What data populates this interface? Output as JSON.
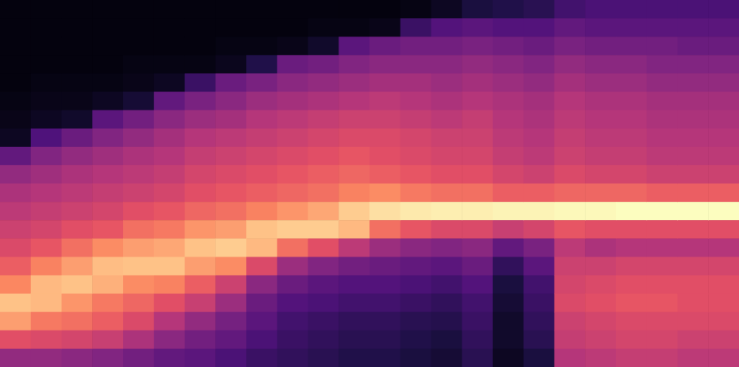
{
  "chart_data": {
    "type": "heatmap",
    "tick_labels": false,
    "xlim": [
      0,
      24
    ],
    "ylim": [
      0,
      20
    ],
    "color_range": [
      0,
      100
    ],
    "cells": [
      [
        2,
        2,
        2,
        2,
        2,
        3,
        4,
        6,
        30,
        42,
        48,
        52,
        56,
        60,
        66,
        75,
        88,
        80,
        62,
        42
      ],
      [
        2,
        2,
        2,
        2,
        3,
        4,
        6,
        25,
        38,
        45,
        50,
        54,
        58,
        64,
        74,
        86,
        86,
        72,
        60,
        42
      ],
      [
        2,
        2,
        2,
        2,
        3,
        4,
        8,
        32,
        42,
        48,
        52,
        56,
        62,
        70,
        80,
        88,
        78,
        70,
        58,
        40
      ],
      [
        2,
        2,
        2,
        2,
        3,
        6,
        28,
        38,
        45,
        50,
        54,
        58,
        64,
        76,
        87,
        84,
        72,
        66,
        55,
        38
      ],
      [
        2,
        2,
        2,
        3,
        4,
        10,
        34,
        42,
        48,
        52,
        56,
        62,
        70,
        80,
        88,
        76,
        68,
        60,
        48,
        34
      ],
      [
        2,
        2,
        2,
        3,
        6,
        30,
        40,
        46,
        50,
        54,
        58,
        64,
        72,
        82,
        88,
        74,
        62,
        50,
        40,
        30
      ],
      [
        2,
        2,
        2,
        3,
        20,
        36,
        44,
        50,
        54,
        58,
        62,
        68,
        78,
        88,
        80,
        66,
        55,
        42,
        34,
        28
      ],
      [
        2,
        2,
        3,
        5,
        32,
        40,
        46,
        52,
        56,
        60,
        64,
        70,
        80,
        90,
        76,
        56,
        44,
        35,
        30,
        24
      ],
      [
        2,
        2,
        3,
        14,
        36,
        44,
        50,
        54,
        58,
        62,
        66,
        74,
        88,
        86,
        60,
        40,
        32,
        28,
        24,
        20
      ],
      [
        2,
        2,
        4,
        32,
        40,
        46,
        52,
        56,
        60,
        64,
        68,
        78,
        90,
        70,
        44,
        32,
        26,
        22,
        20,
        18
      ],
      [
        2,
        3,
        8,
        34,
        42,
        48,
        54,
        58,
        62,
        66,
        70,
        82,
        90,
        62,
        38,
        28,
        24,
        20,
        18,
        16
      ],
      [
        2,
        3,
        28,
        38,
        44,
        50,
        56,
        60,
        64,
        68,
        74,
        90,
        86,
        52,
        34,
        26,
        22,
        18,
        16,
        14
      ],
      [
        2,
        4,
        32,
        40,
        46,
        52,
        56,
        60,
        62,
        66,
        76,
        94,
        70,
        44,
        32,
        26,
        22,
        18,
        16,
        14
      ],
      [
        3,
        20,
        34,
        40,
        46,
        50,
        54,
        58,
        60,
        64,
        72,
        96,
        64,
        40,
        30,
        24,
        20,
        16,
        14,
        12
      ],
      [
        6,
        26,
        34,
        40,
        44,
        48,
        52,
        56,
        58,
        62,
        70,
        97,
        60,
        38,
        28,
        22,
        18,
        15,
        12,
        10
      ],
      [
        12,
        28,
        36,
        42,
        46,
        50,
        54,
        56,
        58,
        62,
        70,
        97,
        60,
        40,
        32,
        26,
        22,
        20,
        18,
        16
      ],
      [
        14,
        26,
        34,
        40,
        44,
        48,
        50,
        52,
        54,
        58,
        66,
        98,
        55,
        30,
        18,
        12,
        10,
        8,
        8,
        6
      ],
      [
        16,
        26,
        32,
        38,
        42,
        46,
        48,
        50,
        52,
        56,
        66,
        98,
        58,
        36,
        28,
        22,
        20,
        18,
        16,
        12
      ],
      [
        22,
        30,
        36,
        42,
        46,
        50,
        52,
        54,
        56,
        60,
        68,
        99,
        64,
        52,
        56,
        58,
        60,
        56,
        54,
        50
      ],
      [
        24,
        28,
        34,
        40,
        44,
        48,
        50,
        52,
        54,
        58,
        68,
        99,
        62,
        48,
        56,
        60,
        62,
        58,
        56,
        52
      ],
      [
        24,
        28,
        34,
        40,
        44,
        48,
        50,
        52,
        54,
        58,
        68,
        100,
        62,
        50,
        58,
        62,
        64,
        60,
        58,
        54
      ],
      [
        24,
        28,
        34,
        38,
        42,
        46,
        48,
        50,
        52,
        56,
        66,
        100,
        62,
        50,
        58,
        62,
        64,
        60,
        58,
        54
      ],
      [
        24,
        28,
        32,
        38,
        42,
        46,
        48,
        50,
        52,
        56,
        66,
        100,
        62,
        50,
        58,
        62,
        62,
        60,
        56,
        52
      ],
      [
        24,
        28,
        32,
        38,
        42,
        46,
        48,
        50,
        52,
        56,
        66,
        100,
        62,
        50,
        58,
        62,
        62,
        60,
        56,
        52
      ]
    ]
  }
}
